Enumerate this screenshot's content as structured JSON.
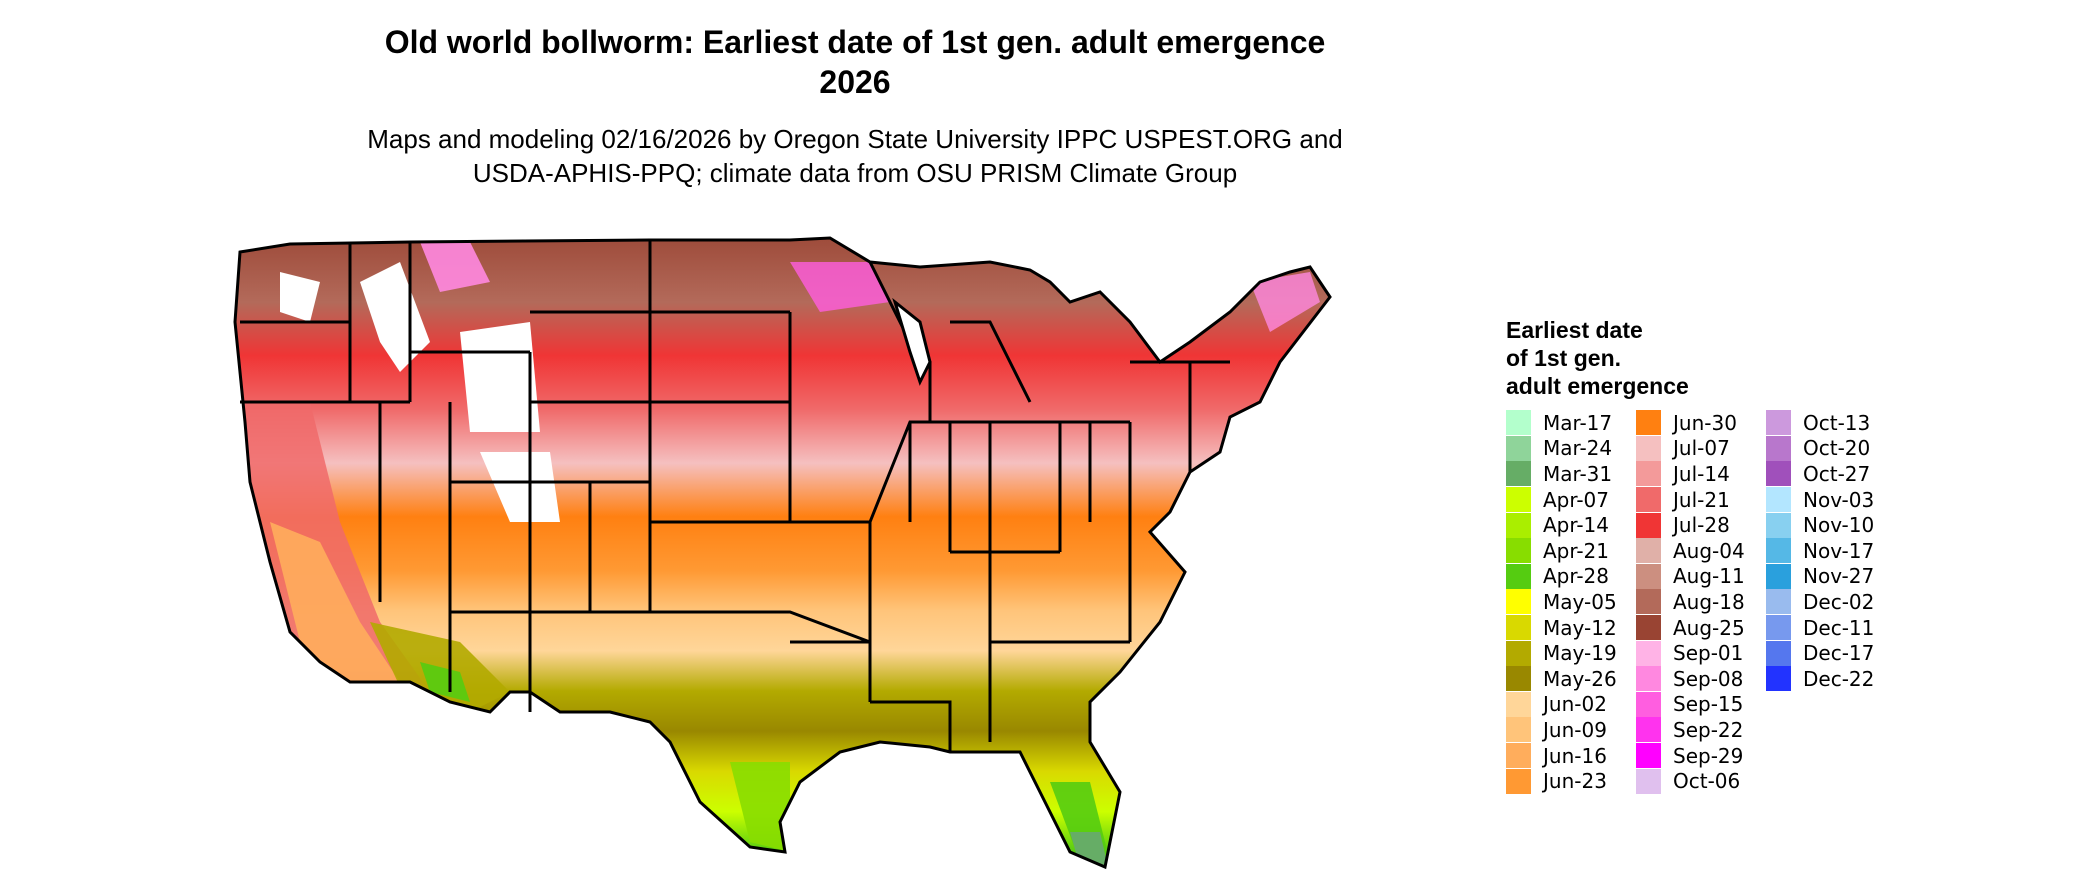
{
  "title": {
    "line1": "Old world bollworm: Earliest date of 1st gen. adult emergence",
    "line2": "2026"
  },
  "subtitle": {
    "line1": "Maps and modeling 02/16/2026 by Oregon State University IPPC USPEST.ORG and",
    "line2": "USDA-APHIS-PPQ; climate data from OSU PRISM Climate Group"
  },
  "legend": {
    "title_lines": [
      "Earliest date",
      "of 1st gen.",
      "adult emergence"
    ],
    "items": [
      {
        "label": "Mar-17",
        "color": "#b3ffcc"
      },
      {
        "label": "Mar-24",
        "color": "#8fd49a"
      },
      {
        "label": "Mar-31",
        "color": "#66ad66"
      },
      {
        "label": "Apr-07",
        "color": "#ccff00"
      },
      {
        "label": "Apr-14",
        "color": "#aaee00"
      },
      {
        "label": "Apr-21",
        "color": "#88dd00"
      },
      {
        "label": "Apr-28",
        "color": "#55cc11"
      },
      {
        "label": "May-05",
        "color": "#ffff00"
      },
      {
        "label": "May-12",
        "color": "#d9d900"
      },
      {
        "label": "May-19",
        "color": "#b3aa00"
      },
      {
        "label": "May-26",
        "color": "#998800"
      },
      {
        "label": "Jun-02",
        "color": "#ffd699"
      },
      {
        "label": "Jun-09",
        "color": "#ffc47a"
      },
      {
        "label": "Jun-16",
        "color": "#ffad5c"
      },
      {
        "label": "Jun-23",
        "color": "#ff9933"
      },
      {
        "label": "Jun-30",
        "color": "#ff8011"
      },
      {
        "label": "Jul-07",
        "color": "#f5c0c0"
      },
      {
        "label": "Jul-14",
        "color": "#f39a9a"
      },
      {
        "label": "Jul-21",
        "color": "#f06a6a"
      },
      {
        "label": "Jul-28",
        "color": "#f03535"
      },
      {
        "label": "Aug-04",
        "color": "#e0b0a8"
      },
      {
        "label": "Aug-11",
        "color": "#cc8f80"
      },
      {
        "label": "Aug-18",
        "color": "#b36a5a"
      },
      {
        "label": "Aug-25",
        "color": "#994433"
      },
      {
        "label": "Sep-01",
        "color": "#ffb3e6"
      },
      {
        "label": "Sep-08",
        "color": "#ff88e0"
      },
      {
        "label": "Sep-15",
        "color": "#ff5ee0"
      },
      {
        "label": "Sep-22",
        "color": "#ff33ee"
      },
      {
        "label": "Sep-29",
        "color": "#ff00ff"
      },
      {
        "label": "Oct-06",
        "color": "#e0c0ee"
      },
      {
        "label": "Oct-13",
        "color": "#cc99dd"
      },
      {
        "label": "Oct-20",
        "color": "#b877cc"
      },
      {
        "label": "Oct-27",
        "color": "#a050bb"
      },
      {
        "label": "Nov-03",
        "color": "#b3e6ff"
      },
      {
        "label": "Nov-10",
        "color": "#88d0f0"
      },
      {
        "label": "Nov-17",
        "color": "#55b8e6"
      },
      {
        "label": "Nov-27",
        "color": "#2aa0dd"
      },
      {
        "label": "Dec-02",
        "color": "#99bbee"
      },
      {
        "label": "Dec-11",
        "color": "#7799ee"
      },
      {
        "label": "Dec-17",
        "color": "#5577ee"
      },
      {
        "label": "Dec-22",
        "color": "#2233ff"
      }
    ]
  }
}
